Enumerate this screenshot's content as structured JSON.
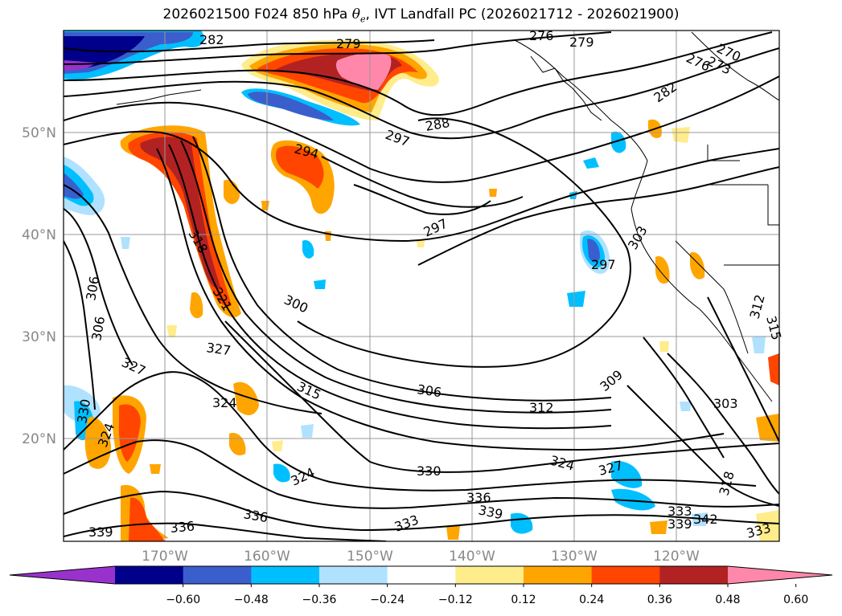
{
  "title": {
    "prefix": "2026021500 F024 850 hPa ",
    "var_symbol": "θ",
    "var_sub": "e",
    "suffix": ", IVT Landfall PC (2026021712 - 2026021900)"
  },
  "axes": {
    "lat_labels": [
      "50°N",
      "40°N",
      "30°N",
      "20°N"
    ],
    "lon_labels": [
      "170°W",
      "160°W",
      "150°W",
      "140°W",
      "130°W",
      "120°W"
    ]
  },
  "colorbar": {
    "ticks": [
      "−0.60",
      "−0.48",
      "−0.36",
      "−0.24",
      "−0.12",
      "0.12",
      "0.24",
      "0.36",
      "0.48",
      "0.60"
    ],
    "colors": [
      "#9932CC",
      "#00008B",
      "#3A5FCD",
      "#00BFFF",
      "#B0E2FF",
      "#FFFFFF",
      "#FFEC8B",
      "#FFA500",
      "#FF4500",
      "#B22222",
      "#FF88AA"
    ]
  },
  "contour_labels": [
    {
      "text": "282"
    },
    {
      "text": "279"
    },
    {
      "text": "276"
    },
    {
      "text": "279"
    },
    {
      "text": "270"
    },
    {
      "text": "273"
    },
    {
      "text": "276"
    },
    {
      "text": "282"
    },
    {
      "text": "288"
    },
    {
      "text": "297"
    },
    {
      "text": "294"
    },
    {
      "text": "297"
    },
    {
      "text": "297"
    },
    {
      "text": "303"
    },
    {
      "text": "300"
    },
    {
      "text": "318"
    },
    {
      "text": "321"
    },
    {
      "text": "327"
    },
    {
      "text": "327"
    },
    {
      "text": "306"
    },
    {
      "text": "306"
    },
    {
      "text": "324"
    },
    {
      "text": "315"
    },
    {
      "text": "306"
    },
    {
      "text": "309"
    },
    {
      "text": "312"
    },
    {
      "text": "303"
    },
    {
      "text": "312"
    },
    {
      "text": "315"
    },
    {
      "text": "330"
    },
    {
      "text": "324"
    },
    {
      "text": "324"
    },
    {
      "text": "330"
    },
    {
      "text": "336"
    },
    {
      "text": "339"
    },
    {
      "text": "327"
    },
    {
      "text": "318"
    },
    {
      "text": "333"
    },
    {
      "text": "339"
    },
    {
      "text": "342"
    },
    {
      "text": "333"
    },
    {
      "text": "336"
    },
    {
      "text": "339"
    },
    {
      "text": "333"
    },
    {
      "text": "336"
    },
    {
      "text": "324"
    }
  ]
}
